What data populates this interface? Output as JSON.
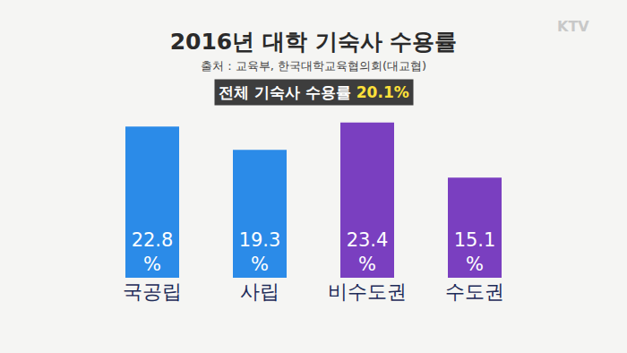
{
  "chart_data": {
    "type": "bar",
    "title": "2016년 대학 기숙사 수용률",
    "subtitle": "출처 : 교육부, 한국대학교육협의회(대교협)",
    "note": "전체 기숙사 수용률",
    "note_value": "20.1%",
    "logo": "KTV",
    "categories": [
      "국공립",
      "사립",
      "비수도권",
      "수도권"
    ],
    "values": [
      22.8,
      19.3,
      23.4,
      15.1
    ],
    "value_labels": [
      "22.8\n%",
      "19.3\n%",
      "23.4\n%",
      "15.1\n%"
    ],
    "colors": [
      "#2b8be8",
      "#2b8be8",
      "#7a3fc0",
      "#7a3fc0"
    ],
    "ylim": [
      0,
      25
    ],
    "grid": false,
    "data_labels": true,
    "tick_labels": "x"
  }
}
